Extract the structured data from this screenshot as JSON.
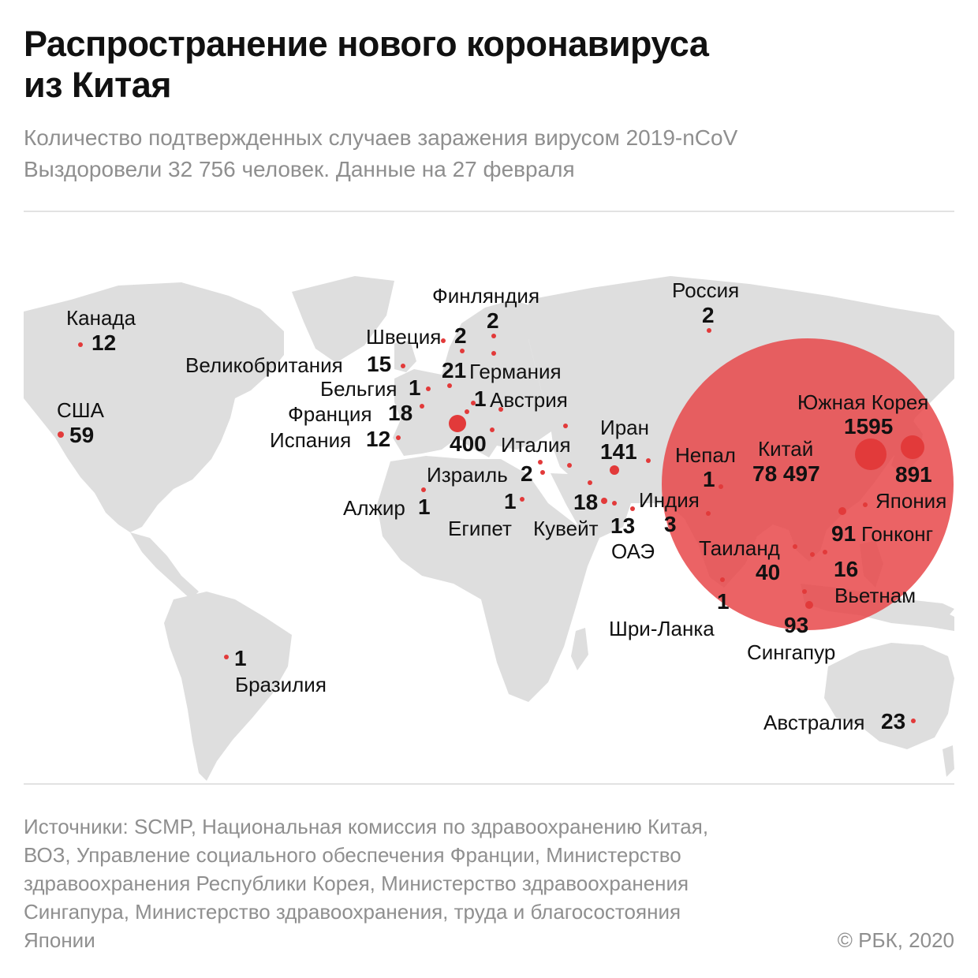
{
  "header": {
    "title_line1": "Распространение нового коронавируса",
    "title_line2": "из Китая",
    "subtitle_line1": "Количество подтвержденных случаев заражения вирусом 2019-nCoV",
    "subtitle_line2": "Выздоровели 32 756 человек. Данные на 27 февраля"
  },
  "colors": {
    "marker": "#e23a3a",
    "china_circle": "#e8484a",
    "land": "#dedede"
  },
  "locations": [
    {
      "id": "canada",
      "name": "Канада",
      "value": "12"
    },
    {
      "id": "usa",
      "name": "США",
      "value": "59"
    },
    {
      "id": "brazil",
      "name": "Бразилия",
      "value": "1"
    },
    {
      "id": "uk",
      "name": "Великобритания",
      "value": "15"
    },
    {
      "id": "belgium",
      "name": "Бельгия",
      "value": "1"
    },
    {
      "id": "france",
      "name": "Франция",
      "value": "18"
    },
    {
      "id": "spain",
      "name": "Испания",
      "value": "12"
    },
    {
      "id": "sweden",
      "name": "Швеция",
      "value": "2"
    },
    {
      "id": "finland",
      "name": "Финляндия",
      "value": "2"
    },
    {
      "id": "germany",
      "name": "Германия",
      "value": "21"
    },
    {
      "id": "austria",
      "name": "Австрия",
      "value": "1"
    },
    {
      "id": "italy",
      "name": "Италия",
      "value": "400"
    },
    {
      "id": "israel",
      "name": "Израиль",
      "value": "2"
    },
    {
      "id": "algeria",
      "name": "Алжир",
      "value": "1"
    },
    {
      "id": "egypt",
      "name": "Египет",
      "value": "1"
    },
    {
      "id": "kuwait",
      "name": "Кувейт",
      "value": "18"
    },
    {
      "id": "uae",
      "name": "ОАЭ",
      "value": "13"
    },
    {
      "id": "iran",
      "name": "Иран",
      "value": "141"
    },
    {
      "id": "india",
      "name": "Индия",
      "value": "3"
    },
    {
      "id": "nepal",
      "name": "Непал",
      "value": "1"
    },
    {
      "id": "russia",
      "name": "Россия",
      "value": "2"
    },
    {
      "id": "china",
      "name": "Китай",
      "value": "78 497"
    },
    {
      "id": "south_korea",
      "name": "Южная Корея",
      "value": "1595"
    },
    {
      "id": "japan",
      "name": "Япония",
      "value": "891"
    },
    {
      "id": "hong_kong",
      "name": "Гонконг",
      "value": "91"
    },
    {
      "id": "thailand",
      "name": "Таиланд",
      "value": "40"
    },
    {
      "id": "vietnam",
      "name": "Вьетнам",
      "value": "16"
    },
    {
      "id": "sri_lanka",
      "name": "Шри-Ланка",
      "value": "1"
    },
    {
      "id": "singapore",
      "name": "Сингапур",
      "value": "93"
    },
    {
      "id": "australia",
      "name": "Австралия",
      "value": "23"
    }
  ],
  "footer": {
    "sources_line1": "Источники: SCMP, Национальная комиссия по здравоохранению Китая,",
    "sources_line2": "ВОЗ, Управление социального обеспечения Франции, Министерство",
    "sources_line3": "здравоохранения Республики Корея, Министерство здравоохранения",
    "sources_line4": "Сингапура, Министерство здравоохранения, труда и благосостояния",
    "sources_line5": "Японии",
    "copyright": "© РБК, 2020"
  }
}
